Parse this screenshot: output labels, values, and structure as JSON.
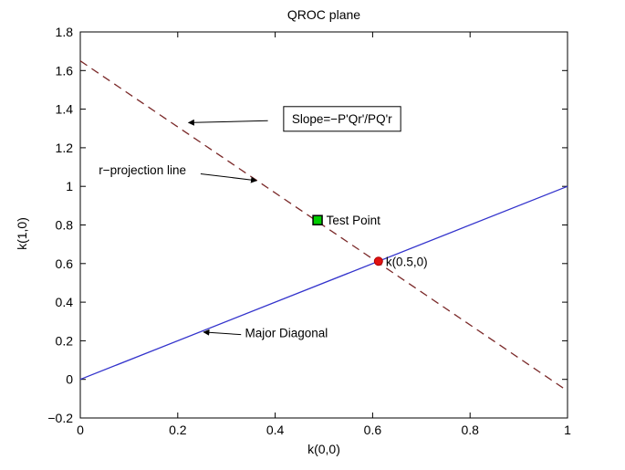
{
  "chart_data": {
    "type": "line",
    "title": "QROC plane",
    "xlabel": "k(0,0)",
    "ylabel": "k(1,0)",
    "xlim": [
      0,
      1
    ],
    "ylim": [
      -0.2,
      1.8
    ],
    "grid": false,
    "legend": "none",
    "xticks": [
      {
        "v": 0,
        "label": "0"
      },
      {
        "v": 0.2,
        "label": "0.2"
      },
      {
        "v": 0.4,
        "label": "0.4"
      },
      {
        "v": 0.6,
        "label": "0.6"
      },
      {
        "v": 0.8,
        "label": "0.8"
      },
      {
        "v": 1,
        "label": "1"
      }
    ],
    "yticks": [
      {
        "v": -0.2,
        "label": "−0.2"
      },
      {
        "v": 0,
        "label": "0"
      },
      {
        "v": 0.2,
        "label": "0.2"
      },
      {
        "v": 0.4,
        "label": "0.4"
      },
      {
        "v": 0.6,
        "label": "0.6"
      },
      {
        "v": 0.8,
        "label": "0.8"
      },
      {
        "v": 1,
        "label": "1"
      },
      {
        "v": 1.2,
        "label": "1.2"
      },
      {
        "v": 1.4,
        "label": "1.4"
      },
      {
        "v": 1.6,
        "label": "1.6"
      },
      {
        "v": 1.8,
        "label": "1.8"
      }
    ],
    "series": [
      {
        "id": "major-diagonal",
        "name": "Major Diagonal",
        "style": "solid",
        "color": "#3333cc",
        "width": 1.3,
        "x": [
          0,
          1
        ],
        "y": [
          0,
          1
        ]
      },
      {
        "id": "r-projection-line",
        "name": "r-projection line",
        "style": "dashed",
        "color": "#7a2828",
        "width": 1.3,
        "x": [
          0,
          1
        ],
        "y": [
          1.65,
          -0.06
        ]
      }
    ],
    "points": [
      {
        "id": "test-point-marker",
        "x": 0.487,
        "y": 0.825,
        "marker": "square",
        "fill": "#00cc00",
        "edge": "#000000",
        "size": 10
      },
      {
        "id": "intersection-marker",
        "x": 0.612,
        "y": 0.612,
        "marker": "circle",
        "fill": "#e01212",
        "edge": "#b00000",
        "size": 9
      }
    ],
    "annotations": [
      {
        "id": "slope-annotation",
        "text": "Slope=−P'Qr'/PQ'r",
        "x": 0.537,
        "y": 1.345,
        "anchor": "middle",
        "boxed": true,
        "arrow": {
          "from": [
            0.385,
            1.34
          ],
          "to": [
            0.222,
            1.33
          ]
        }
      },
      {
        "id": "r-projection-annotation",
        "text": "r−projection line",
        "x": 0.038,
        "y": 1.08,
        "anchor": "start",
        "boxed": false,
        "arrow": {
          "from": [
            0.247,
            1.065
          ],
          "to": [
            0.362,
            1.03
          ]
        }
      },
      {
        "id": "test-point-annotation",
        "text": "Test Point",
        "x": 0.505,
        "y": 0.82,
        "anchor": "start",
        "boxed": false,
        "arrow": null
      },
      {
        "id": "major-diagonal-annotation",
        "text": "Major Diagonal",
        "x": 0.338,
        "y": 0.235,
        "anchor": "start",
        "boxed": false,
        "arrow": {
          "from": [
            0.33,
            0.232
          ],
          "to": [
            0.253,
            0.245
          ]
        }
      },
      {
        "id": "intersection-annotation",
        "text": "k(0.5,0)",
        "x": 0.627,
        "y": 0.605,
        "anchor": "start",
        "boxed": false,
        "arrow": null
      }
    ]
  }
}
